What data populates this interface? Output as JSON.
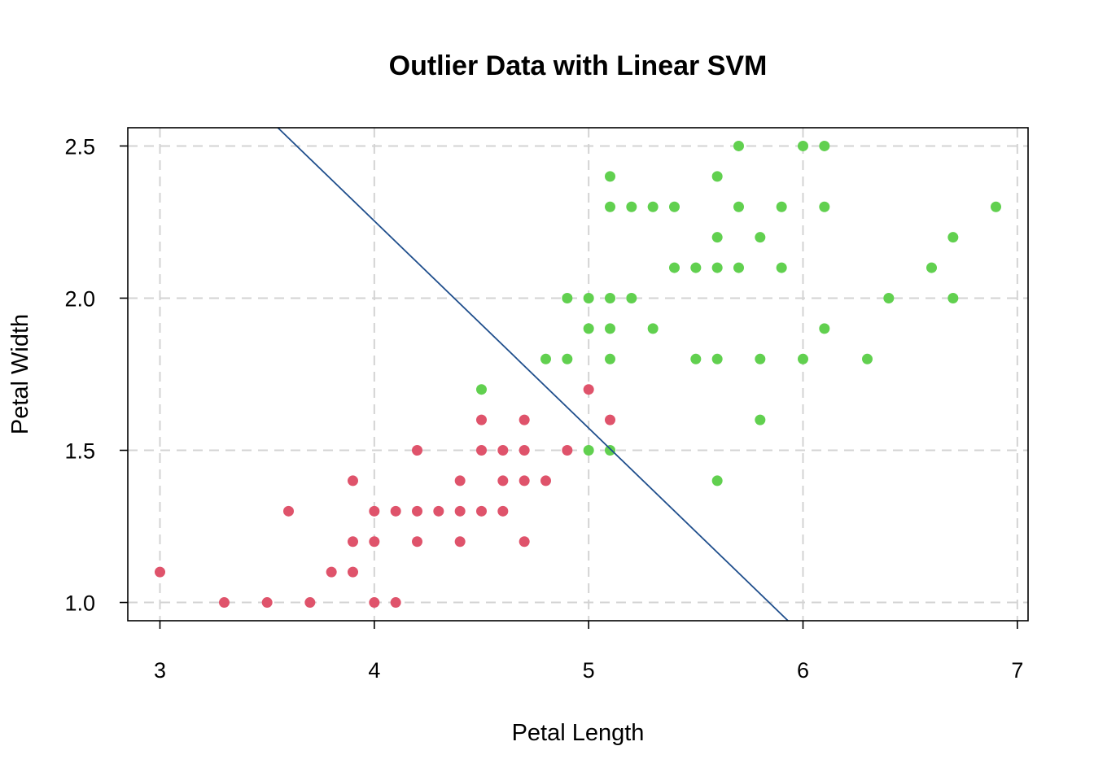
{
  "chart_data": {
    "type": "scatter",
    "title": "Outlier Data with Linear SVM",
    "xlabel": "Petal Length",
    "ylabel": "Petal Width",
    "xlim": [
      2.85,
      7.05
    ],
    "ylim": [
      0.94,
      2.56
    ],
    "x_ticks": [
      3,
      4,
      5,
      6,
      7
    ],
    "y_ticks": [
      1.0,
      1.5,
      2.0,
      2.5
    ],
    "x_tick_labels": [
      "3",
      "4",
      "5",
      "6",
      "7"
    ],
    "y_tick_labels": [
      "1.0",
      "1.5",
      "2.0",
      "2.5"
    ],
    "grid": true,
    "series": [
      {
        "color": "#df536b",
        "points": [
          [
            3.0,
            1.1
          ],
          [
            3.3,
            1.0
          ],
          [
            3.5,
            1.0
          ],
          [
            3.6,
            1.3
          ],
          [
            3.7,
            1.0
          ],
          [
            3.8,
            1.1
          ],
          [
            3.9,
            1.1
          ],
          [
            3.9,
            1.2
          ],
          [
            3.9,
            1.4
          ],
          [
            4.0,
            1.0
          ],
          [
            4.0,
            1.2
          ],
          [
            4.0,
            1.3
          ],
          [
            4.1,
            1.0
          ],
          [
            4.1,
            1.3
          ],
          [
            4.2,
            1.2
          ],
          [
            4.2,
            1.3
          ],
          [
            4.2,
            1.5
          ],
          [
            4.3,
            1.3
          ],
          [
            4.4,
            1.2
          ],
          [
            4.4,
            1.3
          ],
          [
            4.4,
            1.4
          ],
          [
            4.5,
            1.3
          ],
          [
            4.5,
            1.5
          ],
          [
            4.5,
            1.6
          ],
          [
            4.6,
            1.3
          ],
          [
            4.6,
            1.4
          ],
          [
            4.6,
            1.5
          ],
          [
            4.7,
            1.2
          ],
          [
            4.7,
            1.4
          ],
          [
            4.7,
            1.5
          ],
          [
            4.7,
            1.6
          ],
          [
            4.8,
            1.4
          ],
          [
            4.9,
            1.5
          ],
          [
            5.0,
            1.7
          ],
          [
            5.1,
            1.6
          ]
        ]
      },
      {
        "color": "#61d04f",
        "points": [
          [
            4.5,
            1.7
          ],
          [
            4.8,
            1.8
          ],
          [
            4.9,
            1.8
          ],
          [
            4.9,
            2.0
          ],
          [
            5.0,
            1.5
          ],
          [
            5.0,
            1.9
          ],
          [
            5.0,
            2.0
          ],
          [
            5.1,
            1.5
          ],
          [
            5.1,
            1.8
          ],
          [
            5.1,
            1.9
          ],
          [
            5.1,
            2.0
          ],
          [
            5.1,
            2.3
          ],
          [
            5.1,
            2.4
          ],
          [
            5.2,
            2.0
          ],
          [
            5.2,
            2.3
          ],
          [
            5.3,
            1.9
          ],
          [
            5.3,
            2.3
          ],
          [
            5.4,
            2.1
          ],
          [
            5.4,
            2.3
          ],
          [
            5.5,
            1.8
          ],
          [
            5.5,
            2.1
          ],
          [
            5.6,
            1.4
          ],
          [
            5.6,
            1.8
          ],
          [
            5.6,
            2.1
          ],
          [
            5.6,
            2.2
          ],
          [
            5.6,
            2.4
          ],
          [
            5.7,
            2.1
          ],
          [
            5.7,
            2.3
          ],
          [
            5.7,
            2.5
          ],
          [
            5.8,
            1.6
          ],
          [
            5.8,
            1.8
          ],
          [
            5.8,
            2.2
          ],
          [
            5.9,
            2.1
          ],
          [
            5.9,
            2.3
          ],
          [
            6.0,
            1.8
          ],
          [
            6.0,
            2.5
          ],
          [
            6.1,
            1.9
          ],
          [
            6.1,
            2.3
          ],
          [
            6.1,
            2.5
          ],
          [
            6.3,
            1.8
          ],
          [
            6.4,
            2.0
          ],
          [
            6.6,
            2.1
          ],
          [
            6.7,
            2.0
          ],
          [
            6.7,
            2.2
          ],
          [
            6.9,
            2.3
          ]
        ]
      }
    ],
    "decision_line": {
      "color": "#1f4e8c",
      "points": [
        [
          3.55,
          2.56
        ],
        [
          5.93,
          0.94
        ]
      ]
    }
  }
}
